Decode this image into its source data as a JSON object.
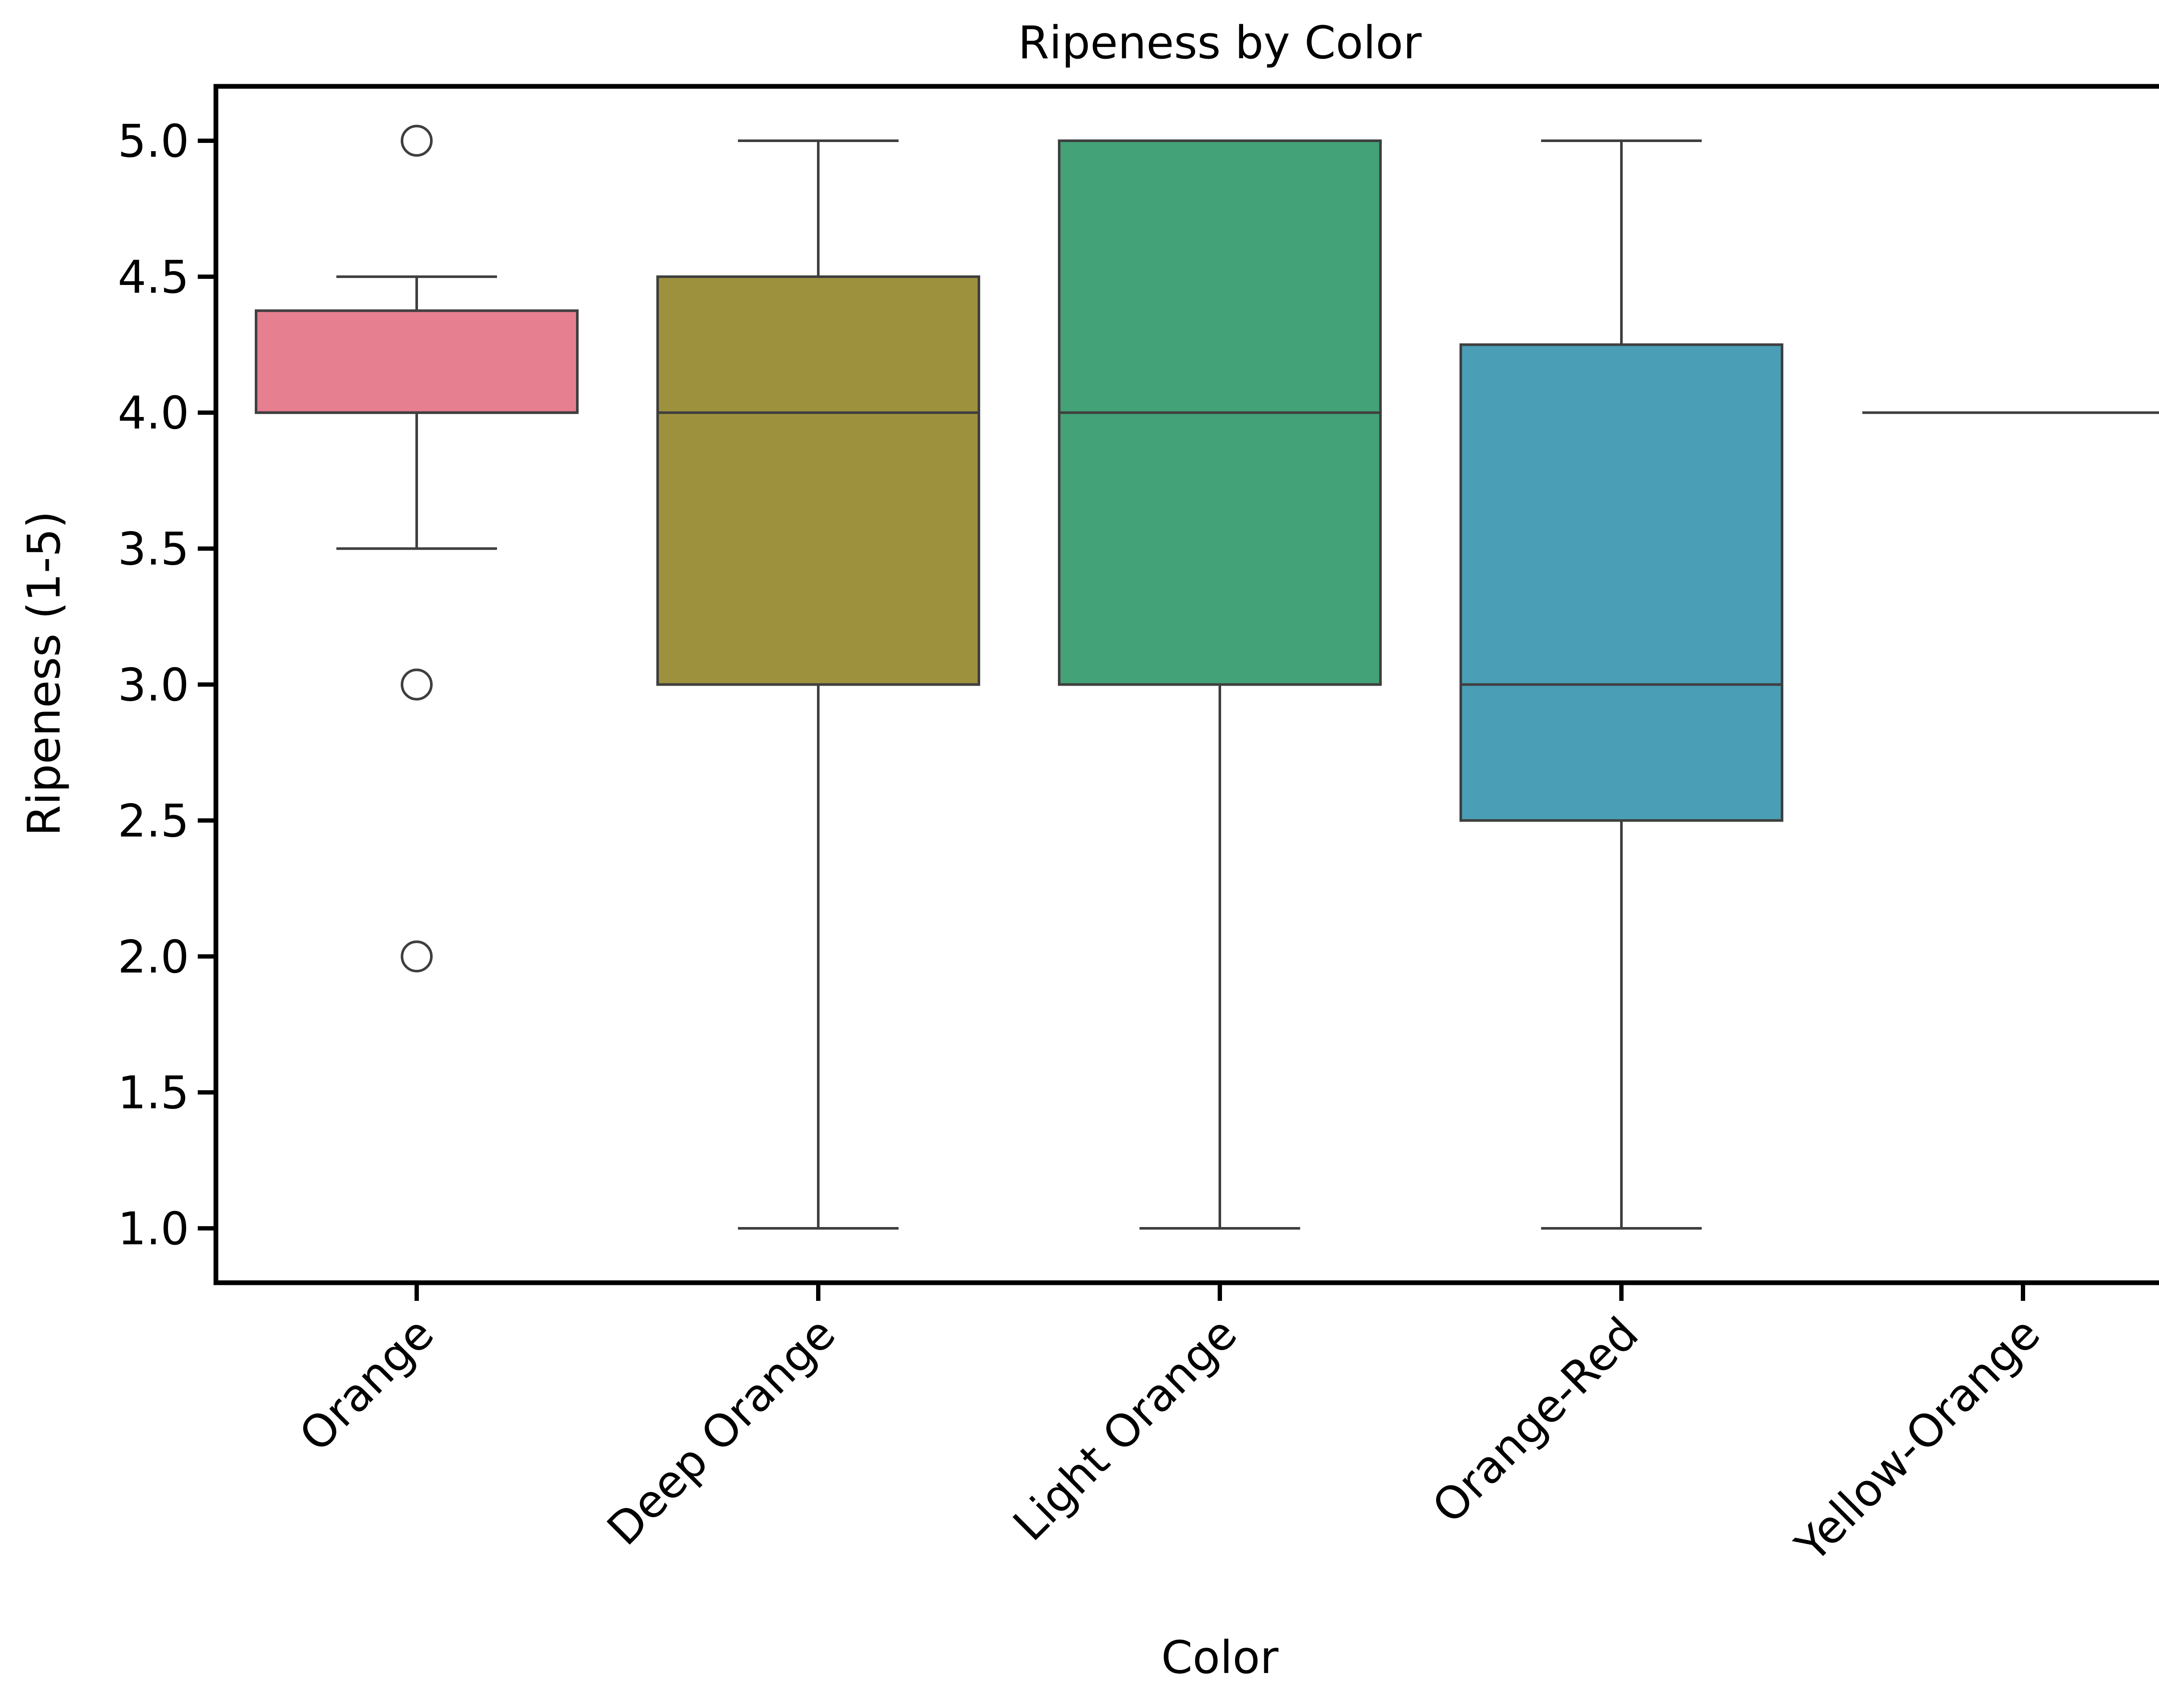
{
  "chart_data": {
    "type": "box",
    "title": "Ripeness by Color",
    "xlabel": "Color",
    "ylabel": "Ripeness (1-5)",
    "ylim": [
      0.8,
      5.2
    ],
    "yticks": [
      "1.0",
      "1.5",
      "2.0",
      "2.5",
      "3.0",
      "3.5",
      "4.0",
      "4.5",
      "5.0"
    ],
    "grid": false,
    "categories": [
      "Orange",
      "Deep Orange",
      "Light Orange",
      "Orange-Red",
      "Yellow-Orange"
    ],
    "boxes": [
      {
        "category": "Orange",
        "color": "#e67f90",
        "whisker_low": 3.5,
        "q1": 4.0,
        "median": 4.0,
        "q3": 4.375,
        "whisker_high": 4.5,
        "outliers": [
          5.0,
          3.0,
          2.0
        ]
      },
      {
        "category": "Deep Orange",
        "color": "#9e913e",
        "whisker_low": 1.0,
        "q1": 3.0,
        "median": 4.0,
        "q3": 4.5,
        "whisker_high": 5.0,
        "outliers": []
      },
      {
        "category": "Light Orange",
        "color": "#43a277",
        "whisker_low": 1.0,
        "q1": 3.0,
        "median": 4.0,
        "q3": 5.0,
        "whisker_high": 5.0,
        "outliers": []
      },
      {
        "category": "Orange-Red",
        "color": "#4a9eb5",
        "whisker_low": 1.0,
        "q1": 2.5,
        "median": 3.0,
        "q3": 4.25,
        "whisker_high": 5.0,
        "outliers": []
      },
      {
        "category": "Yellow-Orange",
        "color": "#b17fd6",
        "whisker_low": 4.0,
        "q1": 4.0,
        "median": 4.0,
        "q3": 4.0,
        "whisker_high": 4.0,
        "outliers": []
      }
    ]
  }
}
